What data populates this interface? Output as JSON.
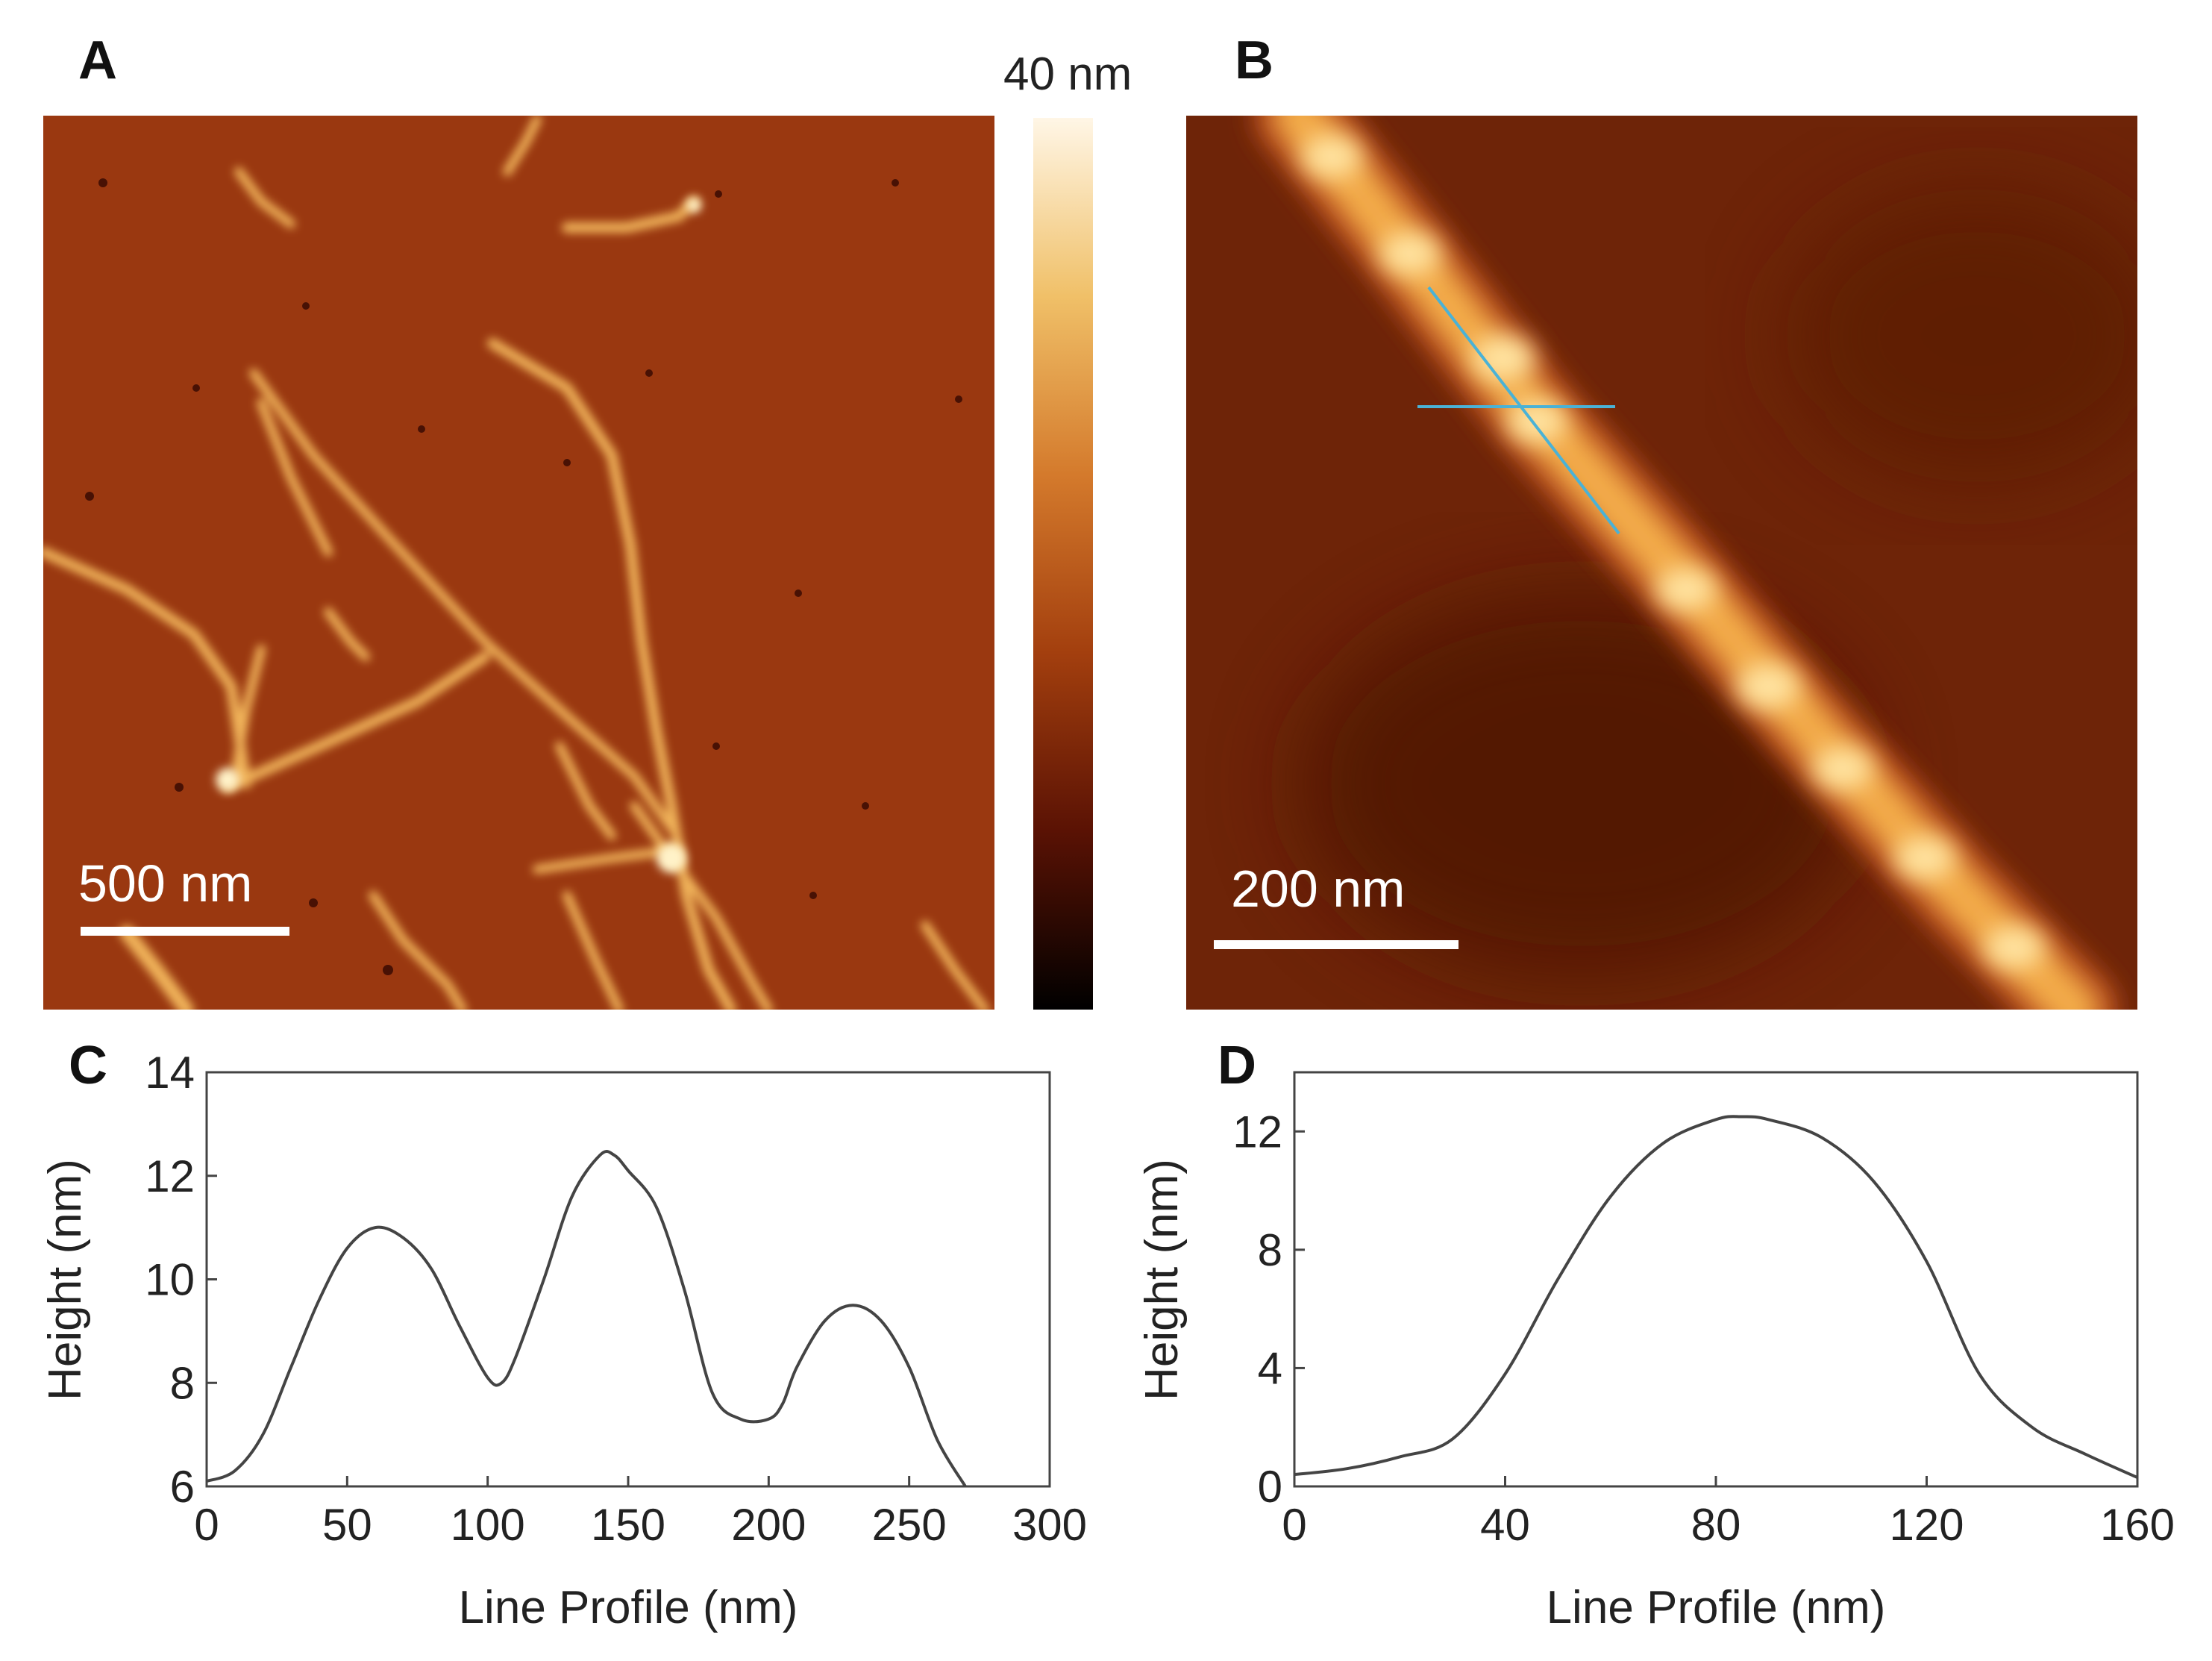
{
  "figure": {
    "panels": {
      "a": {
        "letter": "A",
        "scale_bar_label": "500 nm"
      },
      "b": {
        "letter": "B",
        "scale_bar_label": "200 nm"
      },
      "c": {
        "letter": "C"
      },
      "d": {
        "letter": "D"
      }
    },
    "colorbar": {
      "max_label": "40 nm",
      "range_nm": [
        0,
        40
      ],
      "colors": [
        "#000000",
        "#5a1204",
        "#a33f0e",
        "#d47a2c",
        "#f0c068",
        "#fff6e6"
      ]
    },
    "image_colors": {
      "substrate": "#9a3810",
      "fibril": "#f6c46a",
      "fibril_core": "#fff0c8",
      "profile_line": "#4ab2d6"
    }
  },
  "chart_data": [
    {
      "panel": "C",
      "type": "line",
      "xlabel": "Line Profile (nm)",
      "ylabel": "Height (nm)",
      "xlim": [
        0,
        300
      ],
      "ylim": [
        6,
        14
      ],
      "xticks": [
        0,
        50,
        100,
        150,
        200,
        250,
        300
      ],
      "yticks": [
        6,
        8,
        10,
        12,
        14
      ],
      "series": [
        {
          "name": "profile",
          "x": [
            0,
            10,
            20,
            30,
            40,
            50,
            60,
            70,
            80,
            90,
            100,
            105,
            110,
            120,
            130,
            140,
            145,
            150,
            160,
            170,
            180,
            190,
            200,
            205,
            210,
            220,
            230,
            240,
            250,
            260,
            270
          ],
          "y": [
            6.1,
            6.3,
            7.0,
            8.3,
            9.6,
            10.6,
            11.0,
            10.8,
            10.2,
            9.1,
            8.1,
            8.0,
            8.5,
            10.0,
            11.6,
            12.4,
            12.4,
            12.1,
            11.4,
            9.8,
            7.8,
            7.3,
            7.3,
            7.6,
            8.3,
            9.2,
            9.5,
            9.2,
            8.3,
            6.9,
            6.0
          ]
        }
      ]
    },
    {
      "panel": "D",
      "type": "line",
      "xlabel": "Line Profile (nm)",
      "ylabel": "Height (nm)",
      "xlim": [
        0,
        160
      ],
      "ylim": [
        0,
        14
      ],
      "xticks": [
        0,
        40,
        80,
        120,
        160
      ],
      "yticks": [
        0,
        4,
        8,
        12
      ],
      "series": [
        {
          "name": "profile",
          "x": [
            0,
            10,
            20,
            30,
            40,
            50,
            60,
            70,
            80,
            85,
            90,
            100,
            110,
            120,
            130,
            140,
            150,
            160
          ],
          "y": [
            0.4,
            0.6,
            1.0,
            1.6,
            3.8,
            7.0,
            9.8,
            11.6,
            12.4,
            12.5,
            12.4,
            11.8,
            10.3,
            7.6,
            3.8,
            2.0,
            1.1,
            0.3
          ]
        }
      ]
    }
  ]
}
